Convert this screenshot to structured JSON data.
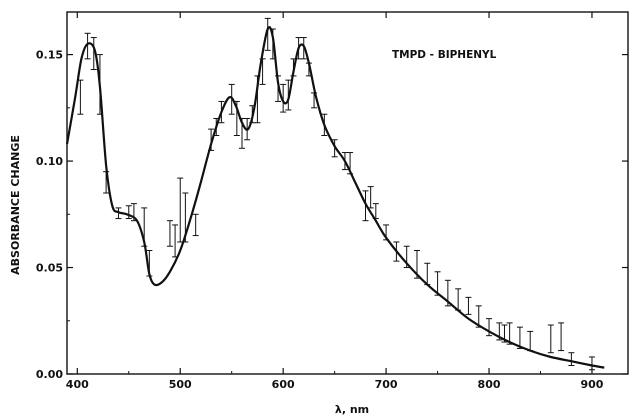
{
  "chart_data": {
    "type": "line",
    "title": "",
    "xlabel": "λ, nm",
    "ylabel": "ABSORBANCE CHANGE",
    "xlim": [
      390,
      935
    ],
    "ylim": [
      0.0,
      0.17
    ],
    "x_ticks": [
      400,
      500,
      600,
      700,
      800,
      900
    ],
    "y_ticks": [
      0.0,
      0.05,
      0.1,
      0.15
    ],
    "y_tick_labels": [
      "0.00",
      "0.05",
      "0.10",
      "0.15"
    ],
    "grid": false,
    "annotations": [
      "TMPD - BIPHENYL"
    ],
    "series": [
      {
        "name": "",
        "x": [
          390,
          398,
          404,
          410,
          417,
          422,
          428,
          434,
          440,
          448,
          458,
          465,
          470,
          475,
          482,
          490,
          500,
          510,
          520,
          530,
          540,
          548,
          554,
          560,
          566,
          572,
          578,
          585,
          590,
          595,
          600,
          605,
          610,
          615,
          620,
          625,
          632,
          640,
          650,
          660,
          670,
          680,
          690,
          700,
          720,
          740,
          760,
          780,
          800,
          820,
          840,
          860,
          880,
          900,
          912
        ],
        "y": [
          0.108,
          0.13,
          0.148,
          0.155,
          0.152,
          0.135,
          0.098,
          0.079,
          0.076,
          0.075,
          0.072,
          0.062,
          0.047,
          0.042,
          0.043,
          0.048,
          0.058,
          0.073,
          0.09,
          0.108,
          0.123,
          0.13,
          0.126,
          0.118,
          0.115,
          0.125,
          0.145,
          0.162,
          0.158,
          0.137,
          0.128,
          0.129,
          0.142,
          0.153,
          0.154,
          0.146,
          0.13,
          0.117,
          0.107,
          0.1,
          0.09,
          0.08,
          0.072,
          0.064,
          0.052,
          0.042,
          0.034,
          0.026,
          0.02,
          0.015,
          0.011,
          0.008,
          0.006,
          0.004,
          0.003
        ]
      }
    ],
    "error_bars": {
      "x": [
        403,
        410,
        416,
        422,
        428,
        440,
        450,
        455,
        465,
        470,
        490,
        495,
        500,
        505,
        515,
        530,
        535,
        540,
        550,
        555,
        560,
        565,
        570,
        575,
        580,
        585,
        590,
        595,
        600,
        605,
        610,
        615,
        620,
        625,
        630,
        640,
        650,
        660,
        665,
        680,
        685,
        690,
        700,
        710,
        720,
        730,
        740,
        750,
        760,
        770,
        780,
        790,
        800,
        810,
        815,
        820,
        830,
        840,
        860,
        870,
        880,
        900
      ],
      "lo": [
        0.122,
        0.148,
        0.143,
        0.122,
        0.085,
        0.073,
        0.073,
        0.072,
        0.06,
        0.046,
        0.06,
        0.055,
        0.062,
        0.062,
        0.065,
        0.105,
        0.112,
        0.118,
        0.122,
        0.112,
        0.106,
        0.11,
        0.118,
        0.118,
        0.136,
        0.152,
        0.148,
        0.128,
        0.123,
        0.124,
        0.14,
        0.148,
        0.148,
        0.14,
        0.125,
        0.112,
        0.102,
        0.096,
        0.094,
        0.072,
        0.078,
        0.073,
        0.063,
        0.053,
        0.05,
        0.045,
        0.042,
        0.037,
        0.032,
        0.03,
        0.028,
        0.022,
        0.018,
        0.016,
        0.015,
        0.014,
        0.012,
        0.011,
        0.01,
        0.011,
        0.004,
        0.002
      ],
      "hi": [
        0.138,
        0.16,
        0.158,
        0.15,
        0.095,
        0.078,
        0.079,
        0.08,
        0.078,
        0.058,
        0.072,
        0.07,
        0.092,
        0.085,
        0.075,
        0.115,
        0.12,
        0.128,
        0.136,
        0.128,
        0.12,
        0.12,
        0.126,
        0.14,
        0.148,
        0.167,
        0.162,
        0.14,
        0.136,
        0.138,
        0.148,
        0.158,
        0.158,
        0.146,
        0.132,
        0.122,
        0.11,
        0.104,
        0.104,
        0.086,
        0.088,
        0.08,
        0.07,
        0.062,
        0.06,
        0.058,
        0.052,
        0.048,
        0.044,
        0.04,
        0.036,
        0.032,
        0.026,
        0.024,
        0.023,
        0.024,
        0.022,
        0.02,
        0.023,
        0.024,
        0.01,
        0.008
      ]
    }
  }
}
